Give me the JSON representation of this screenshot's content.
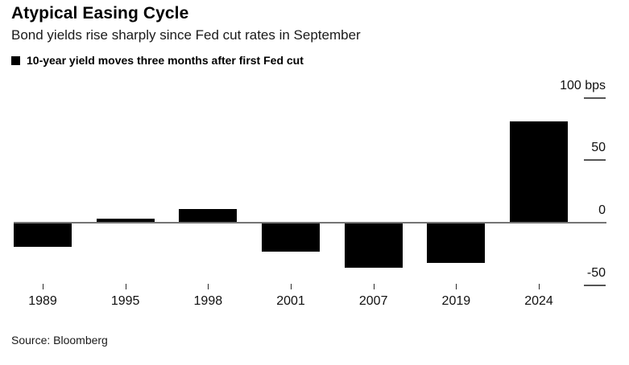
{
  "header": {
    "title": "Atypical Easing Cycle",
    "subtitle": "Bond yields rise sharply since Fed cut rates in September"
  },
  "legend": {
    "label": "10-year yield moves three months after first Fed cut"
  },
  "chart_data": {
    "type": "bar",
    "title": "Atypical Easing Cycle",
    "subtitle": "Bond yields rise sharply since Fed cut rates in September",
    "series_name": "10-year yield moves three months after first Fed cut",
    "categories": [
      "1989",
      "1995",
      "1998",
      "2001",
      "2007",
      "2019",
      "2024"
    ],
    "values": [
      -19,
      3,
      11,
      -23,
      -36,
      -32,
      81
    ],
    "unit": "bps",
    "xlabel": "",
    "ylabel": "bps",
    "ylim": [
      -60,
      100
    ],
    "y_ticks": [
      {
        "label": "100 bps",
        "value": 100
      },
      {
        "label": "50",
        "value": 50
      },
      {
        "label": "0",
        "value": 0
      },
      {
        "label": "-50",
        "value": -50
      }
    ],
    "grid": false,
    "legend_position": "top-left",
    "bar_color": "#000000",
    "axis_color": "#757575"
  },
  "footer": {
    "source": "Source: Bloomberg"
  }
}
